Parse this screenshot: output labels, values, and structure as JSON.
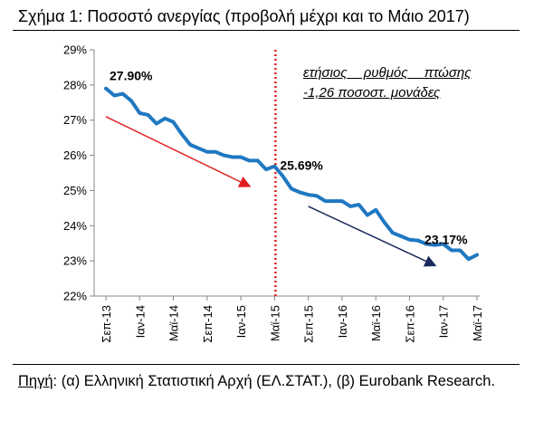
{
  "figure": {
    "title": "Σχήμα 1: Ποσοστό ανεργίας (προβολή μέχρι και το Μάιο 2017)",
    "source_label": "Πηγή",
    "source_text": ": (α) Ελληνική Στατιστική Αρχή (ΕΛ.ΣΤΑΤ.), (β) Eurobank Research."
  },
  "chart_data": {
    "type": "line",
    "title": "",
    "xlabel": "",
    "ylabel": "",
    "ylim": [
      22,
      29
    ],
    "y_ticks": [
      "22%",
      "23%",
      "24%",
      "25%",
      "26%",
      "27%",
      "28%",
      "29%"
    ],
    "grid": false,
    "x_tick_labels": [
      "Σεπ-13",
      "Ιαν-14",
      "Μαϊ-14",
      "Σεπ-14",
      "Ιαν-15",
      "Μαϊ-15",
      "Σεπ-15",
      "Ιαν-16",
      "Μαϊ-16",
      "Σεπ-16",
      "Ιαν-17",
      "Μαϊ-17"
    ],
    "x": [
      "2013-09",
      "2013-10",
      "2013-11",
      "2013-12",
      "2014-01",
      "2014-02",
      "2014-03",
      "2014-04",
      "2014-05",
      "2014-06",
      "2014-07",
      "2014-08",
      "2014-09",
      "2014-10",
      "2014-11",
      "2014-12",
      "2015-01",
      "2015-02",
      "2015-03",
      "2015-04",
      "2015-05",
      "2015-06",
      "2015-07",
      "2015-08",
      "2015-09",
      "2015-10",
      "2015-11",
      "2015-12",
      "2016-01",
      "2016-02",
      "2016-03",
      "2016-04",
      "2016-05",
      "2016-06",
      "2016-07",
      "2016-08",
      "2016-09",
      "2016-10",
      "2016-11",
      "2016-12",
      "2017-01",
      "2017-02",
      "2017-03",
      "2017-04",
      "2017-05"
    ],
    "series": [
      {
        "color": "#1f78c1",
        "values": [
          27.9,
          27.7,
          27.75,
          27.55,
          27.2,
          27.15,
          26.9,
          27.05,
          26.95,
          26.6,
          26.3,
          26.2,
          26.1,
          26.1,
          26.0,
          25.95,
          25.95,
          25.85,
          25.85,
          25.6,
          25.69,
          25.4,
          25.05,
          24.95,
          24.88,
          24.85,
          24.7,
          24.7,
          24.7,
          24.55,
          24.6,
          24.3,
          24.45,
          24.1,
          23.8,
          23.7,
          23.6,
          23.58,
          23.48,
          23.45,
          23.48,
          23.3,
          23.3,
          23.05,
          23.17
        ]
      }
    ],
    "data_labels": [
      {
        "x": "2013-09",
        "text": "27.90%"
      },
      {
        "x": "2015-05",
        "text": "25.69%"
      },
      {
        "x": "2017-02",
        "text": "23.17%"
      }
    ],
    "vline": {
      "x": "2015-05",
      "color": "#e02020",
      "style": "dotted"
    },
    "trend_arrows": [
      {
        "color": "#e02020",
        "from": [
          "2013-09",
          27.1
        ],
        "to": [
          "2015-05",
          25.1
        ]
      },
      {
        "color": "#1a2a5c",
        "from": [
          "2015-09",
          24.55
        ],
        "to": [
          "2017-03",
          22.85
        ]
      }
    ],
    "annotation": {
      "line1": "ετήσιος ρυθμός πτώσης",
      "line2": "-1,26 ποσοστ. μονάδες"
    }
  }
}
